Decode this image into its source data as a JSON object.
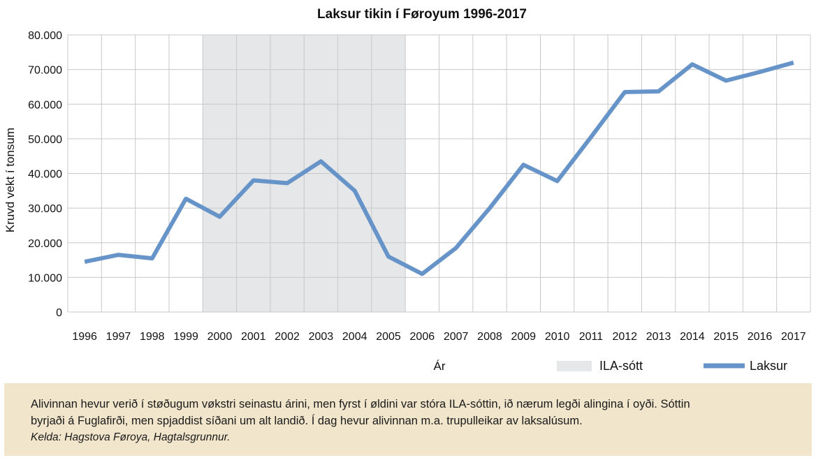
{
  "chart_data": {
    "type": "line",
    "title": "Laksur tikin í Føroyum 1996-2017",
    "xlabel": "Ár",
    "ylabel": "Kruvd vekt í tonsum",
    "categories": [
      "1996",
      "1997",
      "1998",
      "1999",
      "2000",
      "2001",
      "2002",
      "2003",
      "2004",
      "2005",
      "2006",
      "2007",
      "2008",
      "2009",
      "2010",
      "2011",
      "2012",
      "2013",
      "2014",
      "2015",
      "2016",
      "2017"
    ],
    "series": [
      {
        "name": "Laksur",
        "color": "#6794c8",
        "values": [
          14500,
          16500,
          15500,
          32700,
          27500,
          38000,
          37200,
          43500,
          35000,
          16000,
          11000,
          18500,
          30000,
          42500,
          37800,
          50500,
          63500,
          63700,
          71500,
          66800,
          69300,
          72000
        ]
      }
    ],
    "shaded_region": {
      "name": "ILA-sótt",
      "from": "2000",
      "to": "2005",
      "color": "#e6e7e9"
    },
    "ylim": [
      0,
      80000
    ],
    "yticks": [
      "0",
      "10.000",
      "20.000",
      "30.000",
      "40.000",
      "50.000",
      "60.000",
      "70.000",
      "80.000"
    ],
    "grid": true,
    "legend": [
      "ILA-sótt",
      "Laksur"
    ],
    "legend_position": "bottom-right"
  },
  "caption": {
    "line1": "Alivinnan hevur verið í støðugum vøkstri seinastu árini, men fyrst í øldini var stóra ILA-sóttin, ið nærum legði alingina í oyði. Sóttin",
    "line2": "byrjaði á Fuglafirði, men spjaddist síðani um alt landið. Í dag hevur alivinnan m.a. trupulleikar av laksalúsum.",
    "source": "Kelda: Hagstova Føroya, Hagtalsgrunnur."
  }
}
